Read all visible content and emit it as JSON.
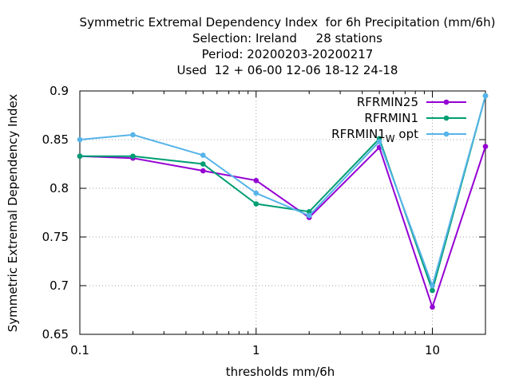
{
  "chart_data": {
    "type": "line",
    "title_lines": [
      "Symmetric Extremal Dependency Index  for 6h Precipitation (mm/6h)",
      "Selection: Ireland     28 stations",
      "Period: 20200203-20200217",
      "Used  12 + 06-00 12-06 18-12 24-18"
    ],
    "xlabel": "thresholds mm/6h",
    "ylabel": "Symmetric Extremal Dependency Index",
    "xscale": "log",
    "xlim": [
      0.1,
      20
    ],
    "ylim": [
      0.65,
      0.9
    ],
    "xticks": [
      {
        "value": 0.1,
        "label": "0.1"
      },
      {
        "value": 1,
        "label": "1"
      },
      {
        "value": 10,
        "label": "10"
      }
    ],
    "yticks": [
      {
        "value": 0.65,
        "label": "0.65"
      },
      {
        "value": 0.7,
        "label": "0.7"
      },
      {
        "value": 0.75,
        "label": "0.75"
      },
      {
        "value": 0.8,
        "label": "0.8"
      },
      {
        "value": 0.85,
        "label": "0.85"
      },
      {
        "value": 0.9,
        "label": "0.9"
      }
    ],
    "grid": true,
    "legend_position": "top-right",
    "x": [
      0.1,
      0.2,
      0.5,
      1,
      2,
      5,
      10,
      20
    ],
    "series": [
      {
        "name": "RFRMIN25",
        "color": "#9400d3",
        "values": [
          0.833,
          0.831,
          0.818,
          0.808,
          0.77,
          0.842,
          0.678,
          0.843
        ]
      },
      {
        "name": "RFRMIN1",
        "color": "#009e73",
        "values": [
          0.833,
          0.833,
          0.825,
          0.784,
          0.776,
          0.851,
          0.695,
          0.895
        ]
      },
      {
        "name": "RFRMIN1",
        "name_sub": "W",
        "name_suffix": "opt",
        "color": "#56b4e9",
        "values": [
          0.85,
          0.855,
          0.834,
          0.795,
          0.772,
          0.848,
          0.7,
          0.895
        ]
      }
    ]
  }
}
